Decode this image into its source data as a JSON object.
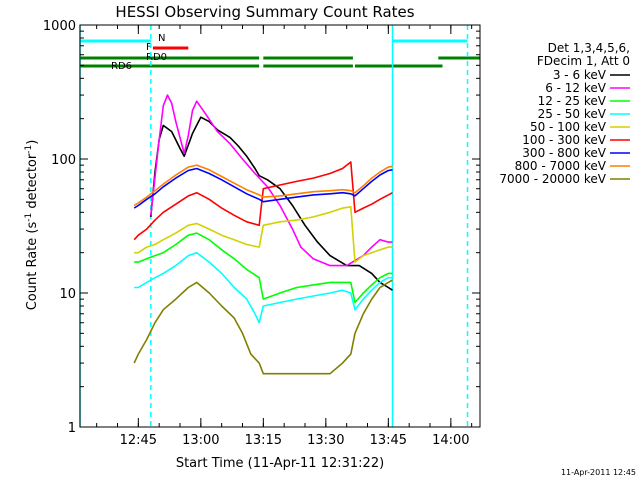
{
  "chart_data": {
    "type": "line",
    "title": "HESSI Observing Summary Count Rates",
    "xlabel": "Start Time (11-Apr-11 12:31:22)",
    "ylabel_main": "Count Rate (s",
    "ylabel_sup1": "-1",
    "ylabel_mid": " detector",
    "ylabel_sup2": "-1",
    "ylabel_end": ")",
    "yscale": "log",
    "ylim": [
      1,
      1000
    ],
    "xlim_minutes": [
      0,
      96
    ],
    "ytick_labels": [
      "1",
      "10",
      "100",
      "1000"
    ],
    "ytick_values": [
      1,
      10,
      100,
      1000
    ],
    "xtick_labels": [
      "12:45",
      "13:00",
      "13:15",
      "13:30",
      "13:45",
      "14:00"
    ],
    "xtick_values": [
      14,
      29,
      44,
      59,
      74,
      89
    ],
    "legend_header": [
      "Det 1,3,4,5,6,",
      "FDecim 1, Att 0"
    ],
    "footer": "11-Apr-2011 12:45",
    "flags": [
      {
        "label": "N",
        "color": "#00ffff",
        "segments": [
          [
            0,
            17
          ],
          [
            75,
            93
          ]
        ]
      },
      {
        "label": "F",
        "color": "#ff0000",
        "segments": [
          [
            17.5,
            26
          ]
        ]
      },
      {
        "label": "RD0",
        "color": "#008000",
        "segments": [
          [
            0,
            43
          ],
          [
            44,
            65.5
          ],
          [
            86,
            96
          ]
        ]
      },
      {
        "label": "RD6",
        "color": "#008000",
        "segments": [
          [
            0,
            43
          ],
          [
            44,
            65.5
          ],
          [
            66,
            87
          ]
        ]
      }
    ],
    "vlines": [
      {
        "x": 0,
        "color": "#00ffff",
        "dashed": false
      },
      {
        "x": 17,
        "color": "#00ffff",
        "dashed": true
      },
      {
        "x": 75,
        "color": "#00ffff",
        "dashed": false
      },
      {
        "x": 93,
        "color": "#00ffff",
        "dashed": true
      }
    ],
    "series": [
      {
        "name": "3 - 6 keV",
        "color": "#000000",
        "points": [
          [
            17,
            37
          ],
          [
            18,
            80
          ],
          [
            19,
            140
          ],
          [
            20,
            178
          ],
          [
            22,
            160
          ],
          [
            24,
            120
          ],
          [
            25,
            105
          ],
          [
            27,
            155
          ],
          [
            29,
            205
          ],
          [
            31,
            190
          ],
          [
            33,
            165
          ],
          [
            36,
            145
          ],
          [
            38,
            125
          ],
          [
            40,
            105
          ],
          [
            42,
            85
          ],
          [
            43,
            75
          ],
          [
            45,
            70
          ],
          [
            48,
            60
          ],
          [
            51,
            45
          ],
          [
            54,
            32
          ],
          [
            57,
            24
          ],
          [
            60,
            19
          ],
          [
            64,
            16
          ],
          [
            67,
            16
          ],
          [
            70,
            14
          ],
          [
            72,
            12
          ],
          [
            74,
            11
          ],
          [
            75,
            10.5
          ]
        ]
      },
      {
        "name": "6 - 12 keV",
        "color": "#ff00ff",
        "points": [
          [
            17,
            38
          ],
          [
            19,
            140
          ],
          [
            20,
            250
          ],
          [
            21,
            300
          ],
          [
            22,
            260
          ],
          [
            23,
            190
          ],
          [
            25,
            110
          ],
          [
            26,
            150
          ],
          [
            27,
            230
          ],
          [
            28,
            270
          ],
          [
            30,
            220
          ],
          [
            33,
            160
          ],
          [
            36,
            130
          ],
          [
            39,
            100
          ],
          [
            42,
            78
          ],
          [
            45,
            62
          ],
          [
            48,
            45
          ],
          [
            51,
            30
          ],
          [
            53,
            22
          ],
          [
            56,
            18
          ],
          [
            60,
            16
          ],
          [
            64,
            16
          ],
          [
            68,
            19
          ],
          [
            70,
            22
          ],
          [
            72,
            25
          ],
          [
            74,
            24
          ],
          [
            75,
            24
          ]
        ]
      },
      {
        "name": "12 - 25 keV",
        "color": "#00ff00",
        "points": [
          [
            13,
            17
          ],
          [
            14,
            17
          ],
          [
            16,
            18
          ],
          [
            18,
            19
          ],
          [
            20,
            20
          ],
          [
            23,
            23
          ],
          [
            26,
            27
          ],
          [
            28,
            28
          ],
          [
            31,
            25
          ],
          [
            34,
            21
          ],
          [
            37,
            18
          ],
          [
            40,
            15
          ],
          [
            43,
            13
          ],
          [
            44,
            9
          ],
          [
            48,
            10
          ],
          [
            52,
            11
          ],
          [
            56,
            11.5
          ],
          [
            60,
            12
          ],
          [
            63,
            12
          ],
          [
            65,
            12
          ],
          [
            66,
            8.5
          ],
          [
            68,
            10
          ],
          [
            70,
            11.5
          ],
          [
            72,
            13
          ],
          [
            74,
            14
          ],
          [
            75,
            14
          ]
        ]
      },
      {
        "name": "25 - 50 keV",
        "color": "#00ffff",
        "points": [
          [
            13,
            11
          ],
          [
            14,
            11
          ],
          [
            16,
            12
          ],
          [
            18,
            13
          ],
          [
            20,
            14
          ],
          [
            23,
            16
          ],
          [
            26,
            19
          ],
          [
            28,
            20
          ],
          [
            31,
            17
          ],
          [
            34,
            14
          ],
          [
            37,
            11
          ],
          [
            40,
            9
          ],
          [
            42,
            7
          ],
          [
            43,
            6
          ],
          [
            44,
            8
          ],
          [
            48,
            8.5
          ],
          [
            52,
            9
          ],
          [
            56,
            9.5
          ],
          [
            60,
            10
          ],
          [
            63,
            10.5
          ],
          [
            65,
            10
          ],
          [
            66,
            7.5
          ],
          [
            68,
            9
          ],
          [
            70,
            10.5
          ],
          [
            72,
            12
          ],
          [
            74,
            13
          ],
          [
            75,
            13
          ]
        ]
      },
      {
        "name": "50 - 100 keV",
        "color": "#d2d200",
        "points": [
          [
            13,
            20
          ],
          [
            14,
            20
          ],
          [
            16,
            22
          ],
          [
            18,
            23
          ],
          [
            20,
            25
          ],
          [
            23,
            28
          ],
          [
            26,
            32
          ],
          [
            28,
            33
          ],
          [
            31,
            30
          ],
          [
            34,
            27
          ],
          [
            37,
            25
          ],
          [
            40,
            23
          ],
          [
            43,
            22
          ],
          [
            44,
            32
          ],
          [
            48,
            34
          ],
          [
            52,
            35
          ],
          [
            56,
            37
          ],
          [
            60,
            40
          ],
          [
            63,
            43
          ],
          [
            65,
            44
          ],
          [
            66,
            17
          ],
          [
            68,
            19
          ],
          [
            70,
            20
          ],
          [
            72,
            21
          ],
          [
            74,
            22
          ],
          [
            75,
            22
          ]
        ]
      },
      {
        "name": "100 - 300 keV",
        "color": "#ff0000",
        "points": [
          [
            13,
            25
          ],
          [
            14,
            27
          ],
          [
            16,
            30
          ],
          [
            18,
            35
          ],
          [
            20,
            40
          ],
          [
            23,
            46
          ],
          [
            26,
            53
          ],
          [
            28,
            56
          ],
          [
            31,
            50
          ],
          [
            34,
            43
          ],
          [
            37,
            38
          ],
          [
            40,
            34
          ],
          [
            43,
            32
          ],
          [
            44,
            60
          ],
          [
            48,
            64
          ],
          [
            52,
            68
          ],
          [
            56,
            72
          ],
          [
            60,
            78
          ],
          [
            63,
            85
          ],
          [
            65,
            95
          ],
          [
            66,
            40
          ],
          [
            68,
            43
          ],
          [
            70,
            46
          ],
          [
            72,
            50
          ],
          [
            74,
            54
          ],
          [
            75,
            56
          ]
        ]
      },
      {
        "name": "300 - 800 keV",
        "color": "#0000ff",
        "points": [
          [
            13,
            43
          ],
          [
            14,
            45
          ],
          [
            16,
            50
          ],
          [
            18,
            55
          ],
          [
            20,
            62
          ],
          [
            23,
            72
          ],
          [
            26,
            82
          ],
          [
            28,
            85
          ],
          [
            31,
            78
          ],
          [
            34,
            70
          ],
          [
            37,
            62
          ],
          [
            40,
            55
          ],
          [
            43,
            50
          ],
          [
            44,
            48
          ],
          [
            48,
            50
          ],
          [
            52,
            52
          ],
          [
            56,
            54
          ],
          [
            60,
            55
          ],
          [
            63,
            56
          ],
          [
            65,
            55
          ],
          [
            66,
            53
          ],
          [
            68,
            60
          ],
          [
            70,
            68
          ],
          [
            72,
            76
          ],
          [
            74,
            82
          ],
          [
            75,
            83
          ]
        ]
      },
      {
        "name": "800 - 7000 keV",
        "color": "#ff8000",
        "points": [
          [
            13,
            45
          ],
          [
            14,
            47
          ],
          [
            16,
            52
          ],
          [
            18,
            58
          ],
          [
            20,
            65
          ],
          [
            23,
            76
          ],
          [
            26,
            87
          ],
          [
            28,
            90
          ],
          [
            31,
            83
          ],
          [
            34,
            74
          ],
          [
            37,
            66
          ],
          [
            40,
            59
          ],
          [
            43,
            54
          ],
          [
            44,
            52
          ],
          [
            48,
            53
          ],
          [
            52,
            55
          ],
          [
            56,
            57
          ],
          [
            60,
            58
          ],
          [
            63,
            59
          ],
          [
            65,
            58
          ],
          [
            66,
            56
          ],
          [
            68,
            63
          ],
          [
            70,
            72
          ],
          [
            72,
            80
          ],
          [
            74,
            87
          ],
          [
            75,
            88
          ]
        ]
      },
      {
        "name": "7000 - 20000 keV",
        "color": "#808000",
        "points": [
          [
            13,
            3
          ],
          [
            14,
            3.5
          ],
          [
            16,
            4.5
          ],
          [
            18,
            6
          ],
          [
            20,
            7.5
          ],
          [
            23,
            9
          ],
          [
            26,
            11
          ],
          [
            28,
            12
          ],
          [
            31,
            10
          ],
          [
            34,
            8
          ],
          [
            37,
            6.5
          ],
          [
            39,
            5
          ],
          [
            41,
            3.5
          ],
          [
            43,
            3
          ],
          [
            44,
            2.5
          ],
          [
            48,
            2.5
          ],
          [
            52,
            2.5
          ],
          [
            56,
            2.5
          ],
          [
            60,
            2.5
          ],
          [
            63,
            3
          ],
          [
            65,
            3.5
          ],
          [
            66,
            5
          ],
          [
            68,
            7
          ],
          [
            70,
            9
          ],
          [
            72,
            11
          ],
          [
            74,
            12
          ],
          [
            75,
            12.5
          ]
        ]
      }
    ]
  }
}
